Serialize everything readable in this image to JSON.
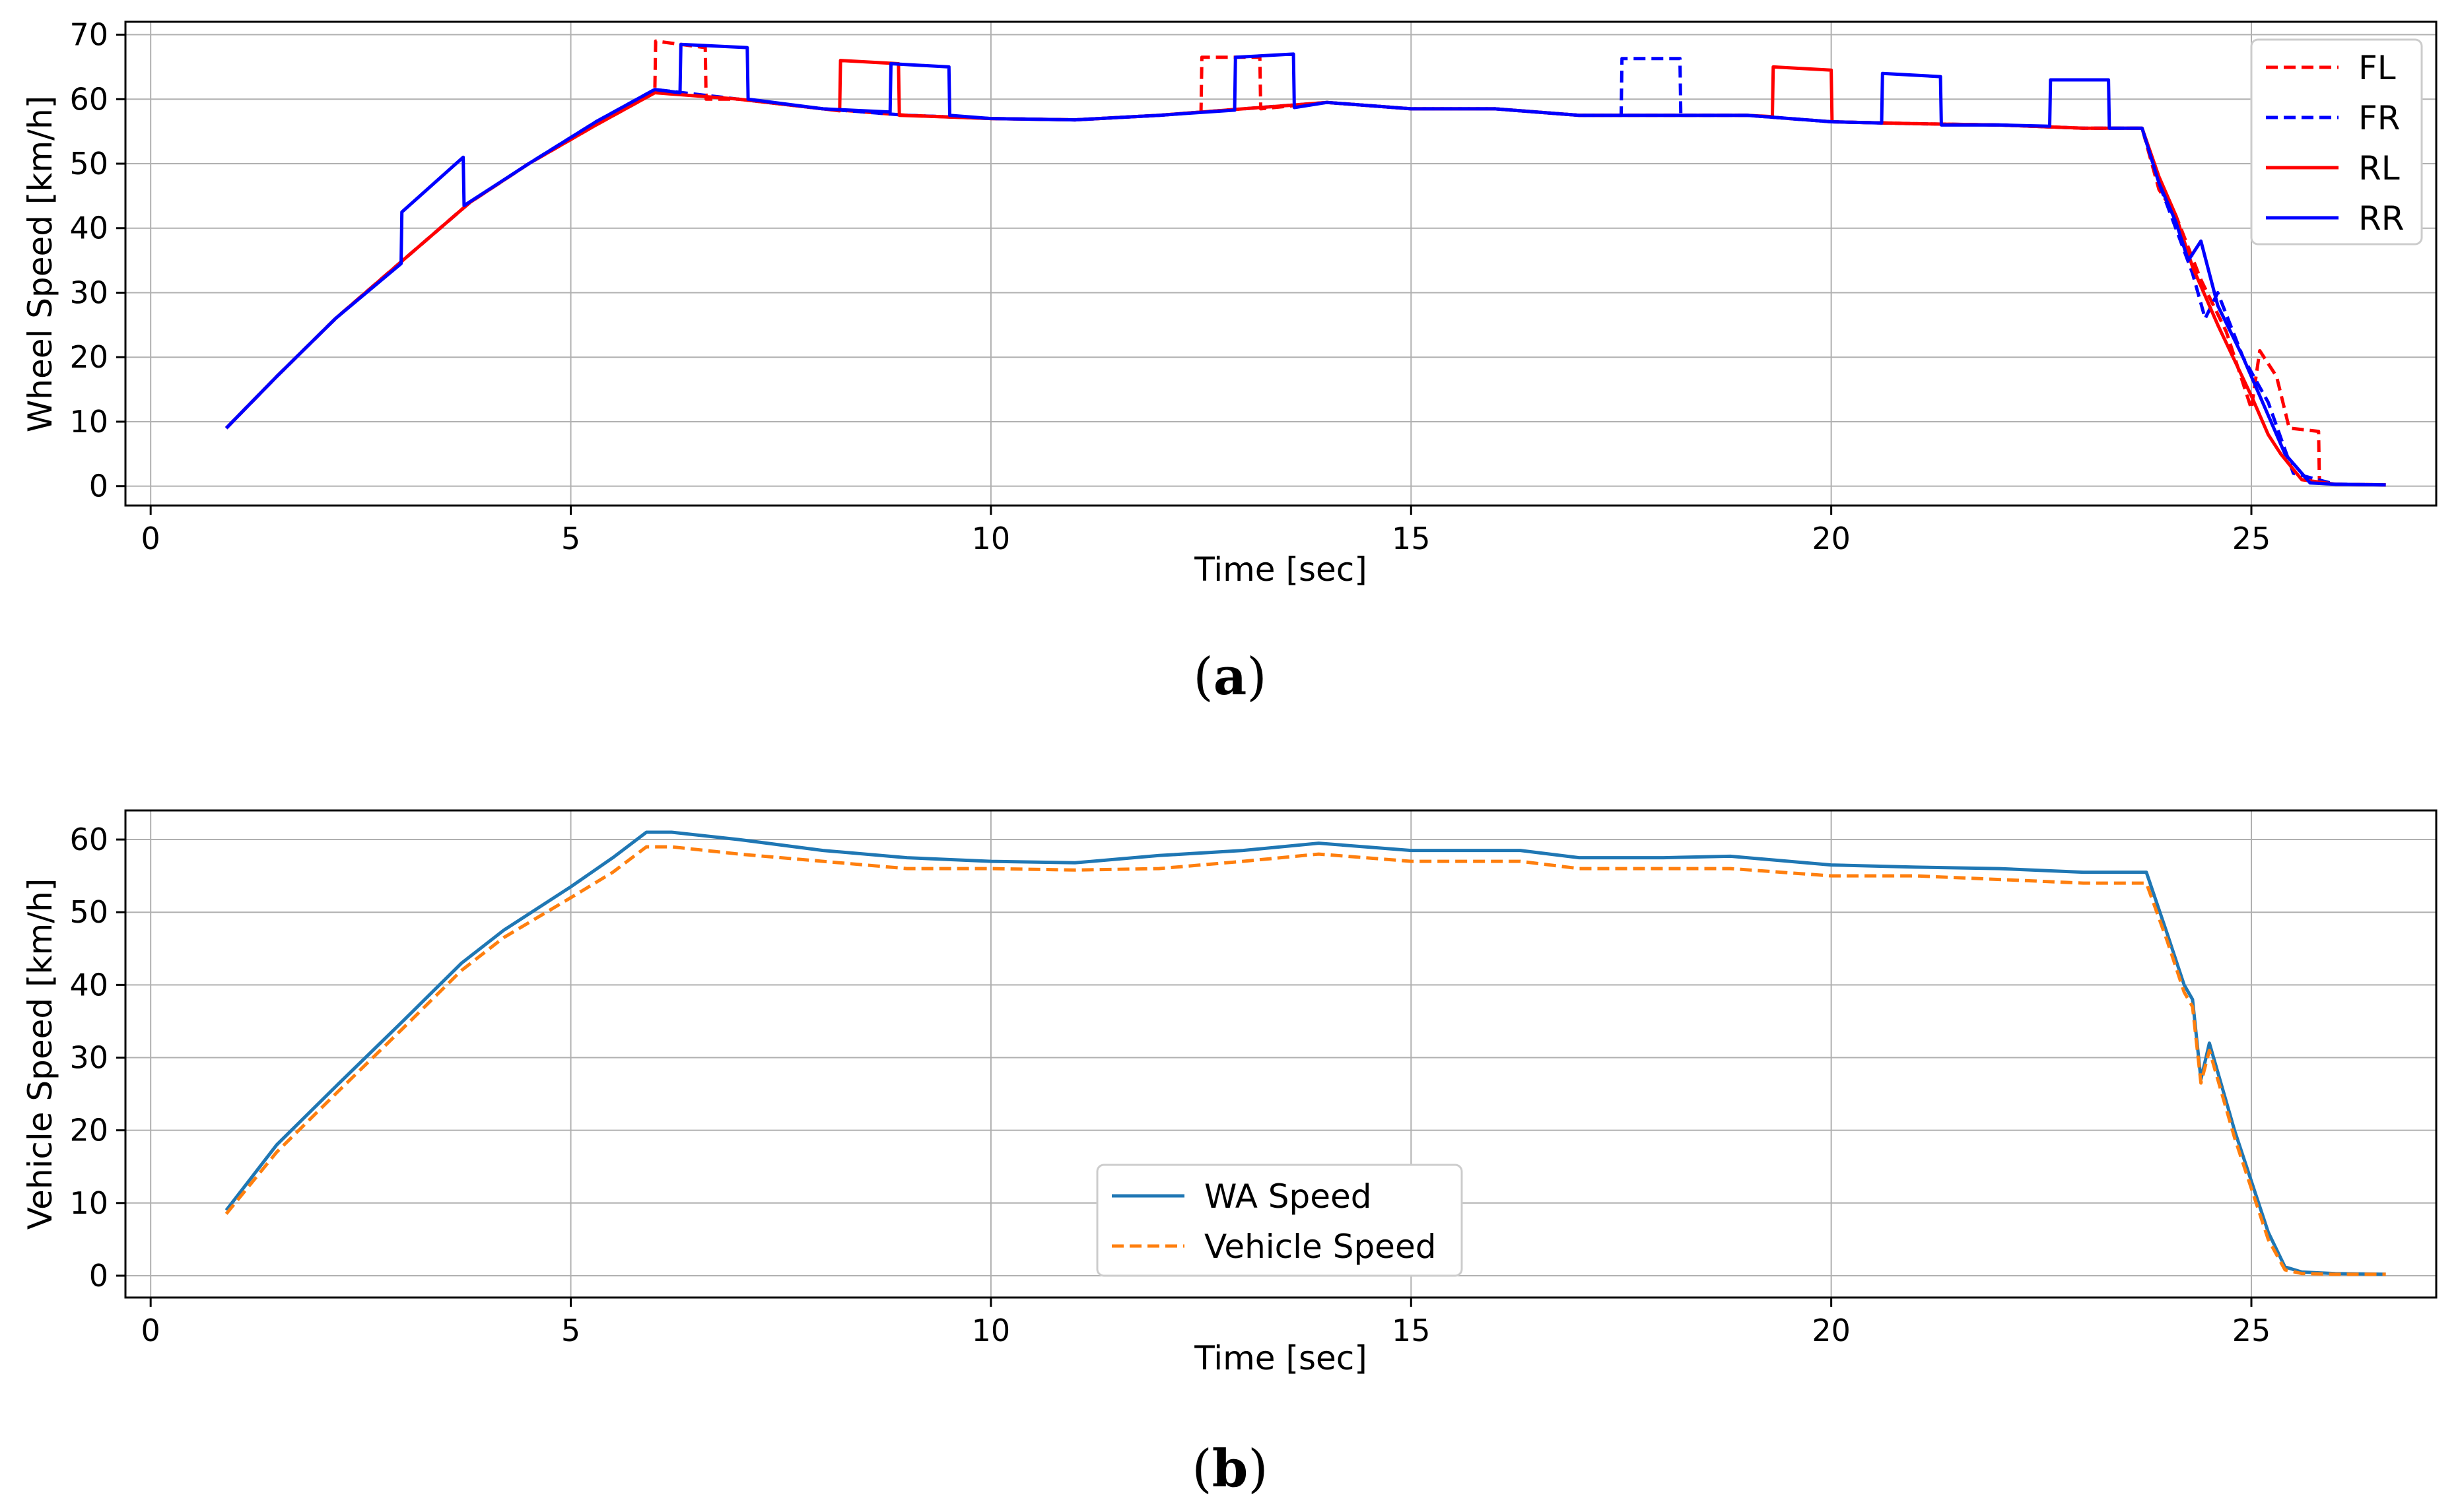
{
  "chart_data": [
    {
      "type": "line",
      "panel": "a",
      "caption_letter": "a",
      "xlabel": "Time [sec]",
      "ylabel": "Wheel Speed [km/h]",
      "xlim": [
        -0.3,
        27.2
      ],
      "ylim": [
        -3,
        72
      ],
      "xticks": [
        0,
        5,
        10,
        15,
        20,
        25
      ],
      "yticks": [
        0,
        10,
        20,
        30,
        40,
        50,
        60,
        70
      ],
      "grid": true,
      "legend_position": "top-right",
      "series": [
        {
          "name": "FL",
          "color": "#ff0000",
          "dash": "dashed",
          "x": [
            0.9,
            1.5,
            2.2,
            3.0,
            3.8,
            4.5,
            5.3,
            6.0,
            6.01,
            6.6,
            6.61,
            7.0,
            8.0,
            9.0,
            10.0,
            11.0,
            12.0,
            12.5,
            12.51,
            13.2,
            13.21,
            14.0,
            15.0,
            16.0,
            17.0,
            18.0,
            19.0,
            20.0,
            21.0,
            22.0,
            23.0,
            23.7,
            23.9,
            24.1,
            24.4,
            24.7,
            25.0,
            25.1,
            25.3,
            25.45,
            25.8,
            25.81,
            26.0,
            26.6
          ],
          "y": [
            9,
            17,
            26,
            35,
            44,
            50,
            56,
            61,
            69,
            68,
            60,
            60,
            58.5,
            57.5,
            57,
            56.8,
            57.5,
            58,
            66.5,
            66.5,
            58.5,
            59.5,
            58.5,
            58.5,
            57.5,
            57.5,
            57.5,
            56.5,
            56.2,
            56,
            55.5,
            55.5,
            46,
            42,
            32,
            24,
            12,
            21,
            17,
            9,
            8.5,
            0.5,
            0.3,
            0.2
          ]
        },
        {
          "name": "FR",
          "color": "#0000ff",
          "dash": "dashed",
          "x": [
            0.9,
            1.5,
            2.2,
            3.0,
            3.8,
            4.5,
            5.3,
            6.0,
            7.0,
            8.0,
            9.0,
            10.0,
            11.0,
            12.0,
            13.0,
            14.0,
            15.0,
            16.0,
            17.0,
            17.5,
            17.51,
            18.2,
            18.21,
            19.0,
            20.0,
            21.0,
            22.0,
            23.0,
            23.7,
            23.9,
            24.1,
            24.3,
            24.45,
            24.6,
            24.9,
            25.2,
            25.5,
            26.0,
            26.6
          ],
          "y": [
            9,
            17,
            26,
            35,
            44,
            50,
            56.5,
            61.5,
            60,
            58.5,
            57.5,
            57,
            56.8,
            57.5,
            58.5,
            59.5,
            58.5,
            58.5,
            57.5,
            57.5,
            66.3,
            66.3,
            57.5,
            57.5,
            56.5,
            56.2,
            56,
            55.5,
            55.5,
            47,
            40,
            33,
            26,
            30,
            20,
            13,
            2,
            0.3,
            0.2
          ]
        },
        {
          "name": "RL",
          "color": "#ff0000",
          "dash": "solid",
          "x": [
            0.9,
            1.5,
            2.2,
            3.0,
            3.8,
            4.5,
            5.3,
            6.0,
            7.0,
            8.0,
            8.2,
            8.21,
            8.9,
            8.91,
            10.0,
            11.0,
            12.0,
            13.0,
            14.0,
            15.0,
            16.0,
            17.0,
            18.0,
            19.0,
            19.3,
            19.31,
            20.0,
            20.01,
            21.0,
            22.0,
            23.0,
            23.7,
            23.9,
            24.1,
            24.3,
            24.6,
            25.0,
            25.2,
            25.35,
            25.6,
            26.0,
            26.6
          ],
          "y": [
            9,
            17,
            26,
            35,
            44,
            50,
            56,
            61,
            60,
            58.5,
            58.2,
            66,
            65.5,
            57.5,
            57,
            56.8,
            57.5,
            58.5,
            59.5,
            58.5,
            58.5,
            57.5,
            57.5,
            57.5,
            57.3,
            65,
            64.5,
            56.5,
            56.2,
            56,
            55.5,
            55.5,
            48,
            42,
            34,
            25,
            14,
            8,
            5,
            1,
            0.3,
            0.2
          ]
        },
        {
          "name": "RR",
          "color": "#0000ff",
          "dash": "solid",
          "x": [
            0.9,
            1.5,
            2.2,
            2.98,
            2.99,
            3.72,
            3.73,
            4.5,
            5.3,
            6.0,
            6.3,
            6.31,
            7.1,
            7.11,
            8.0,
            8.8,
            8.81,
            9.5,
            9.51,
            10.0,
            11.0,
            12.0,
            12.9,
            12.91,
            13.6,
            13.61,
            14.0,
            15.0,
            16.0,
            17.0,
            18.0,
            19.0,
            20.0,
            20.6,
            20.61,
            21.3,
            21.31,
            22.0,
            22.6,
            22.61,
            23.3,
            23.31,
            23.7,
            23.9,
            24.1,
            24.25,
            24.4,
            24.6,
            24.9,
            25.2,
            25.4,
            25.7,
            26.0,
            26.6
          ],
          "y": [
            9,
            17,
            26,
            34.5,
            42.5,
            51,
            43.5,
            50,
            56.5,
            61.5,
            61,
            68.5,
            68,
            60,
            58.5,
            58,
            65.5,
            65,
            57.5,
            57,
            56.8,
            57.5,
            58.3,
            66.5,
            67,
            58.7,
            59.5,
            58.5,
            58.5,
            57.5,
            57.5,
            57.5,
            56.5,
            56.3,
            64,
            63.5,
            56,
            56,
            55.8,
            63,
            63,
            55.5,
            55.5,
            47,
            41,
            35,
            38,
            28,
            20,
            11,
            5,
            0.5,
            0.3,
            0.2
          ]
        }
      ]
    },
    {
      "type": "line",
      "panel": "b",
      "caption_letter": "b",
      "xlabel": "Time [sec]",
      "ylabel": "Vehicle Speed [km/h]",
      "xlim": [
        -0.3,
        27.2
      ],
      "ylim": [
        -3,
        64
      ],
      "xticks": [
        0,
        5,
        10,
        15,
        20,
        25
      ],
      "yticks": [
        0,
        10,
        20,
        30,
        40,
        50,
        60
      ],
      "grid": true,
      "legend_position": "lower-center",
      "series": [
        {
          "name": "WA Speed",
          "color": "#1f77b4",
          "dash": "solid",
          "x": [
            0.9,
            1.5,
            2.2,
            3.0,
            3.7,
            4.2,
            5.0,
            5.5,
            5.9,
            6.2,
            7.0,
            8.0,
            9.0,
            10.0,
            11.0,
            12.0,
            13.0,
            13.9,
            15.0,
            16.3,
            17.0,
            18.0,
            18.8,
            20.0,
            21.0,
            22.0,
            23.0,
            23.75,
            24.0,
            24.2,
            24.3,
            24.4,
            24.5,
            24.6,
            24.8,
            25.0,
            25.2,
            25.4,
            25.6,
            26.0,
            26.6
          ],
          "y": [
            9,
            18,
            26,
            35,
            43,
            47.5,
            53.5,
            57.5,
            61,
            61,
            60,
            58.5,
            57.5,
            57,
            56.8,
            57.8,
            58.5,
            59.5,
            58.5,
            58.5,
            57.5,
            57.5,
            57.7,
            56.5,
            56.2,
            56,
            55.5,
            55.5,
            47,
            40,
            38,
            27,
            32,
            28,
            20,
            13,
            6,
            1.2,
            0.5,
            0.3,
            0.2
          ]
        },
        {
          "name": "Vehicle Speed",
          "color": "#ff7f0e",
          "dash": "dashed",
          "x": [
            0.9,
            1.5,
            2.2,
            3.0,
            3.7,
            4.2,
            5.0,
            5.5,
            5.9,
            6.2,
            7.0,
            8.0,
            9.0,
            10.0,
            11.0,
            12.0,
            13.0,
            13.9,
            15.0,
            16.3,
            17.0,
            18.0,
            18.8,
            20.0,
            21.0,
            22.0,
            23.0,
            23.75,
            24.0,
            24.2,
            24.3,
            24.4,
            24.5,
            24.6,
            24.8,
            25.0,
            25.2,
            25.4,
            25.6,
            26.0,
            26.6
          ],
          "y": [
            8.5,
            17,
            25,
            34,
            42,
            46.5,
            52,
            55.5,
            59,
            59,
            58,
            57,
            56,
            56,
            55.8,
            56,
            57,
            58,
            57,
            57,
            56,
            56,
            56,
            55,
            55,
            54.5,
            54,
            54,
            46,
            39,
            37,
            26.5,
            31,
            27,
            19,
            12,
            5,
            0.8,
            0.3,
            0.2,
            0.2
          ]
        }
      ]
    }
  ]
}
